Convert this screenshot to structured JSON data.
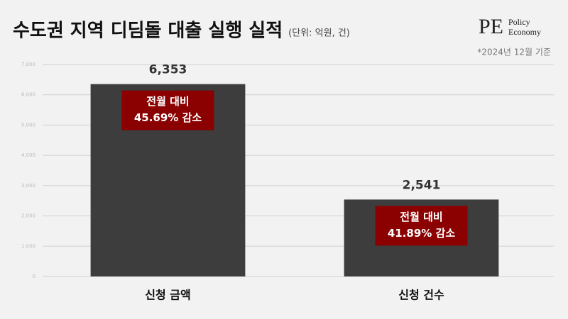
{
  "chart_data": {
    "type": "bar",
    "title": "수도권 지역 디딤돌 대출 실행 실적",
    "subtitle": "(단위: 억원, 건)",
    "note": "*2024년 12월 기준",
    "categories": [
      "신청 금액",
      "신청 건수"
    ],
    "values": [
      6353,
      2541
    ],
    "value_labels": [
      "6,353",
      "2,541"
    ],
    "annotations": [
      [
        "전월 대비",
        "45.69% 감소"
      ],
      [
        "전월 대비",
        "41.89% 감소"
      ]
    ],
    "color": "#3d3d3d",
    "annotation_color": "#8b0000",
    "ylim": [
      0,
      7000
    ],
    "yticks": [
      0,
      {
        "value": 1000,
        "label": "1,000"
      },
      {
        "value": 2000,
        "label": "2,000"
      },
      {
        "value": 3000,
        "label": "3,000"
      },
      {
        "value": 4000,
        "label": "4,000"
      },
      {
        "value": 5000,
        "label": "5,000"
      },
      {
        "value": 6000,
        "label": "6,000"
      },
      {
        "value": 7000,
        "label": "7,000"
      }
    ],
    "grid": true
  },
  "logo": {
    "mark": "PE",
    "lines": [
      "Policy",
      "Economy"
    ]
  }
}
